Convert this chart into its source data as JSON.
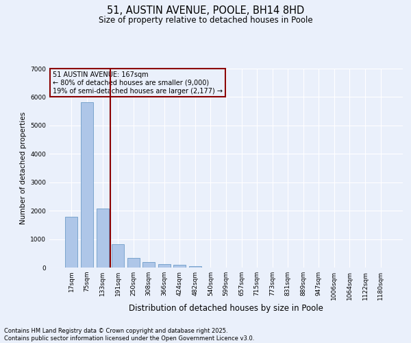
{
  "title_line1": "51, AUSTIN AVENUE, POOLE, BH14 8HD",
  "title_line2": "Size of property relative to detached houses in Poole",
  "xlabel": "Distribution of detached houses by size in Poole",
  "ylabel": "Number of detached properties",
  "categories": [
    "17sqm",
    "75sqm",
    "133sqm",
    "191sqm",
    "250sqm",
    "308sqm",
    "366sqm",
    "424sqm",
    "482sqm",
    "540sqm",
    "599sqm",
    "657sqm",
    "715sqm",
    "773sqm",
    "831sqm",
    "889sqm",
    "947sqm",
    "1006sqm",
    "1064sqm",
    "1122sqm",
    "1180sqm"
  ],
  "values": [
    1780,
    5820,
    2080,
    820,
    340,
    190,
    115,
    95,
    60,
    0,
    0,
    0,
    0,
    0,
    0,
    0,
    0,
    0,
    0,
    0,
    0
  ],
  "bar_color": "#aec6e8",
  "bar_edgecolor": "#5a8fc0",
  "vline_x": 2.5,
  "vline_color": "#8b0000",
  "annotation_text": "51 AUSTIN AVENUE: 167sqm\n← 80% of detached houses are smaller (9,000)\n19% of semi-detached houses are larger (2,177) →",
  "annotation_box_color": "#8b0000",
  "ylim": [
    0,
    7000
  ],
  "yticks": [
    0,
    1000,
    2000,
    3000,
    4000,
    5000,
    6000,
    7000
  ],
  "background_color": "#eaf0fb",
  "grid_color": "#ffffff",
  "footnote": "Contains HM Land Registry data © Crown copyright and database right 2025.\nContains public sector information licensed under the Open Government Licence v3.0."
}
